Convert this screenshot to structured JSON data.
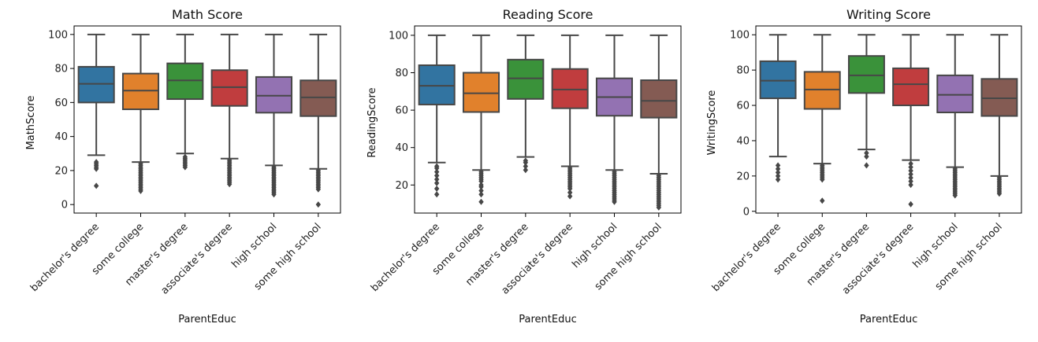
{
  "chart_data": [
    {
      "type": "box",
      "title": "Math Score",
      "xlabel": "ParentEduc",
      "ylabel": "MathScore",
      "categories": [
        "bachelor's degree",
        "some college",
        "master's degree",
        "associate's degree",
        "high school",
        "some high school"
      ],
      "ylim": [
        -5,
        105
      ],
      "yticks": [
        0,
        20,
        40,
        60,
        80,
        100
      ],
      "boxes": [
        {
          "whisker_low": 29,
          "q1": 60,
          "median": 71,
          "q3": 81,
          "whisker_high": 100,
          "outliers": [
            21,
            22,
            23,
            24,
            25,
            11
          ]
        },
        {
          "whisker_low": 25,
          "q1": 56,
          "median": 67,
          "q3": 77,
          "whisker_high": 100,
          "outliers": [
            8,
            9,
            10,
            11,
            12,
            13,
            14,
            15,
            16,
            17,
            18,
            19,
            20,
            21,
            22,
            23,
            24
          ]
        },
        {
          "whisker_low": 30,
          "q1": 62,
          "median": 73,
          "q3": 83,
          "whisker_high": 100,
          "outliers": [
            22,
            23,
            24,
            25,
            26,
            27,
            28
          ]
        },
        {
          "whisker_low": 27,
          "q1": 58,
          "median": 69,
          "q3": 79,
          "whisker_high": 100,
          "outliers": [
            12,
            13,
            14,
            15,
            16,
            17,
            18,
            19,
            20,
            21,
            22,
            23,
            24,
            25,
            26
          ]
        },
        {
          "whisker_low": 23,
          "q1": 54,
          "median": 64,
          "q3": 75,
          "whisker_high": 100,
          "outliers": [
            6,
            7,
            8,
            9,
            10,
            11,
            12,
            13,
            14,
            15,
            16,
            17,
            18,
            19,
            20,
            21,
            22
          ]
        },
        {
          "whisker_low": 21,
          "q1": 52,
          "median": 63,
          "q3": 73,
          "whisker_high": 100,
          "outliers": [
            0,
            9,
            10,
            11,
            12,
            13,
            14,
            15,
            16,
            17,
            18,
            19,
            20
          ]
        }
      ]
    },
    {
      "type": "box",
      "title": "Reading Score",
      "xlabel": "ParentEduc",
      "ylabel": "ReadingScore",
      "categories": [
        "bachelor's degree",
        "some college",
        "master's degree",
        "associate's degree",
        "high school",
        "some high school"
      ],
      "ylim": [
        5,
        105
      ],
      "yticks": [
        20,
        40,
        60,
        80,
        100
      ],
      "boxes": [
        {
          "whisker_low": 32,
          "q1": 63,
          "median": 73,
          "q3": 84,
          "whisker_high": 100,
          "outliers": [
            15,
            18,
            21,
            23,
            25,
            27,
            29,
            30
          ]
        },
        {
          "whisker_low": 28,
          "q1": 59,
          "median": 69,
          "q3": 80,
          "whisker_high": 100,
          "outliers": [
            11,
            15,
            17,
            19,
            20,
            22,
            23,
            24,
            25,
            26,
            27
          ]
        },
        {
          "whisker_low": 35,
          "q1": 66,
          "median": 77,
          "q3": 87,
          "whisker_high": 100,
          "outliers": [
            28,
            30,
            32,
            33
          ]
        },
        {
          "whisker_low": 30,
          "q1": 61,
          "median": 71,
          "q3": 82,
          "whisker_high": 100,
          "outliers": [
            14,
            16,
            18,
            19,
            20,
            21,
            22,
            23,
            24,
            25,
            26,
            27,
            28,
            29
          ]
        },
        {
          "whisker_low": 28,
          "q1": 57,
          "median": 67,
          "q3": 77,
          "whisker_high": 100,
          "outliers": [
            11,
            12,
            13,
            14,
            15,
            16,
            17,
            18,
            19,
            20,
            21,
            22,
            23,
            24,
            25,
            26,
            27
          ]
        },
        {
          "whisker_low": 26,
          "q1": 56,
          "median": 65,
          "q3": 76,
          "whisker_high": 100,
          "outliers": [
            8,
            9,
            10,
            11,
            12,
            13,
            14,
            15,
            16,
            17,
            18,
            19,
            20,
            21,
            22,
            23,
            24,
            25
          ]
        }
      ]
    },
    {
      "type": "box",
      "title": "Writing Score",
      "xlabel": "ParentEduc",
      "ylabel": "WritingScore",
      "categories": [
        "bachelor's degree",
        "some college",
        "master's degree",
        "associate's degree",
        "high school",
        "some high school"
      ],
      "ylim": [
        -1,
        105
      ],
      "yticks": [
        0,
        20,
        40,
        60,
        80,
        100
      ],
      "boxes": [
        {
          "whisker_low": 31,
          "q1": 64,
          "median": 74,
          "q3": 85,
          "whisker_high": 100,
          "outliers": [
            18,
            20,
            22,
            24,
            26
          ]
        },
        {
          "whisker_low": 27,
          "q1": 58,
          "median": 69,
          "q3": 79,
          "whisker_high": 100,
          "outliers": [
            6,
            18,
            19,
            20,
            21,
            22,
            23,
            24,
            25,
            26
          ]
        },
        {
          "whisker_low": 35,
          "q1": 67,
          "median": 77,
          "q3": 88,
          "whisker_high": 100,
          "outliers": [
            26,
            31,
            33
          ]
        },
        {
          "whisker_low": 29,
          "q1": 60,
          "median": 72,
          "q3": 81,
          "whisker_high": 100,
          "outliers": [
            4,
            15,
            17,
            19,
            21,
            23,
            25,
            27
          ]
        },
        {
          "whisker_low": 25,
          "q1": 56,
          "median": 66,
          "q3": 77,
          "whisker_high": 100,
          "outliers": [
            9,
            10,
            11,
            12,
            13,
            14,
            15,
            16,
            17,
            18,
            19,
            20,
            21,
            22,
            23,
            24
          ]
        },
        {
          "whisker_low": 20,
          "q1": 54,
          "median": 64,
          "q3": 75,
          "whisker_high": 100,
          "outliers": [
            10,
            11,
            12,
            13,
            14,
            15,
            16,
            17,
            18,
            19
          ]
        }
      ]
    }
  ],
  "colors": [
    "#3274a1",
    "#e1812c",
    "#3a923a",
    "#c03d3e",
    "#9372b2",
    "#845b53"
  ],
  "line_color": "#474747"
}
